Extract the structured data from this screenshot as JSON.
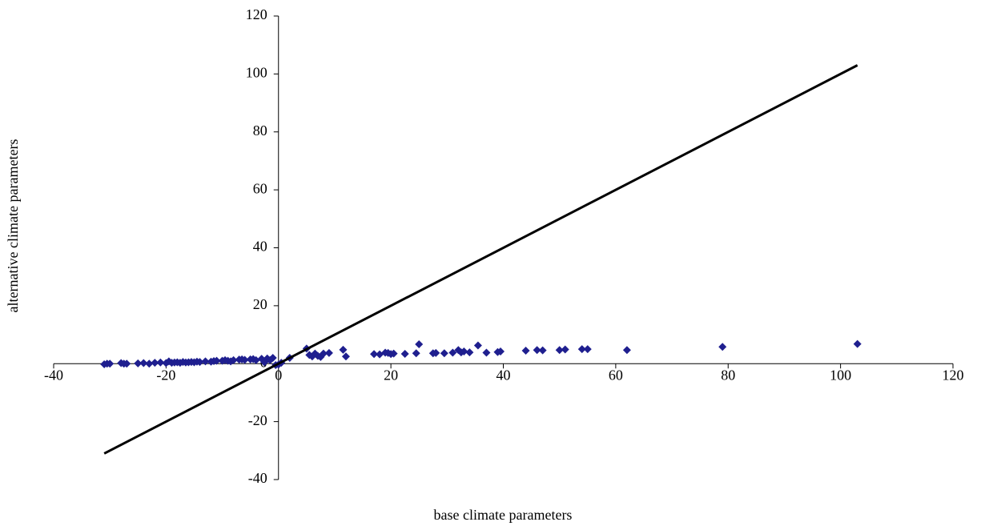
{
  "chart_data": {
    "type": "scatter",
    "x_label": "base climate parameters",
    "y_label": "alternative climate parameters",
    "xlim": [
      -40,
      120
    ],
    "xticks": [
      -40,
      -20,
      0,
      20,
      40,
      60,
      80,
      100,
      120
    ],
    "ylim": [
      -40,
      120
    ],
    "yticks": [
      -40,
      -20,
      0,
      20,
      40,
      60,
      80,
      100,
      120
    ],
    "grid": false,
    "series": [
      {
        "type": "scatter",
        "color": "#1f1f8f",
        "x": [
          -31,
          -30.5,
          -30,
          -28,
          -27.5,
          -27,
          -25,
          -24,
          -23,
          -22,
          -21,
          -20,
          -19.5,
          -19,
          -18.5,
          -18,
          -17.5,
          -17,
          -16.5,
          -16,
          -15.5,
          -15,
          -14.5,
          -14,
          -13,
          -12,
          -11.5,
          -11,
          -10,
          -9.5,
          -9,
          -8.5,
          -8,
          -7,
          -6.5,
          -6,
          -5,
          -4.5,
          -4,
          -3,
          -2.5,
          -2,
          -1.5,
          -1,
          -0.5,
          0,
          0.5,
          2,
          5,
          5.5,
          6,
          6.5,
          7,
          7.5,
          8,
          9,
          11.5,
          12,
          17,
          18,
          19,
          19.5,
          20,
          20.5,
          22.5,
          24.5,
          25,
          27.5,
          28,
          29.5,
          31,
          32,
          32.5,
          33,
          34,
          35.5,
          37,
          39,
          39.5,
          44,
          46,
          47,
          50,
          51,
          54,
          55,
          62,
          79,
          103
        ],
        "values": [
          -0.2,
          0,
          0,
          0.2,
          0,
          0,
          0.1,
          0.2,
          0,
          0.3,
          0.4,
          0.2,
          0.8,
          0.3,
          0.4,
          0.5,
          0.3,
          0.6,
          0.4,
          0.5,
          0.6,
          0.5,
          0.7,
          0.6,
          0.8,
          0.7,
          0.9,
          1,
          1,
          1.2,
          1,
          0.8,
          1.2,
          1.4,
          1.5,
          1.3,
          1.5,
          1.6,
          1.2,
          1.7,
          0.5,
          1.8,
          1.2,
          2,
          -0.5,
          -0.3,
          0.3,
          2,
          5.2,
          3,
          2.5,
          3.5,
          2.7,
          2.3,
          3.5,
          3.7,
          4.8,
          2.5,
          3.3,
          3.2,
          3.8,
          3.7,
          3.3,
          3.5,
          3.4,
          3.6,
          6.7,
          3.6,
          3.7,
          3.6,
          3.8,
          4.7,
          3.9,
          4.2,
          3.9,
          6.3,
          3.8,
          4,
          4.2,
          4.5,
          4.7,
          4.6,
          4.7,
          4.9,
          5,
          5,
          4.7,
          5.8,
          6.8
        ]
      },
      {
        "type": "line",
        "color": "#000000",
        "x": [
          -31,
          103
        ],
        "values": [
          -31,
          103
        ]
      }
    ]
  }
}
